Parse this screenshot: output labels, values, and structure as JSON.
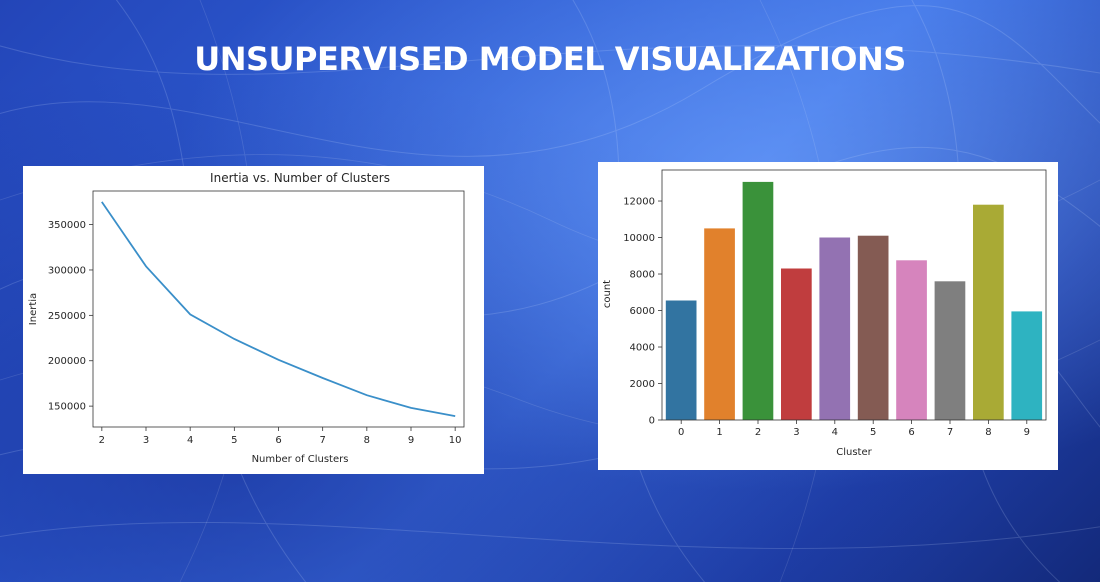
{
  "slide": {
    "title": "UNSUPERVISED MODEL VISUALIZATIONS"
  },
  "chart_data": [
    {
      "type": "line",
      "title": "Inertia vs. Number of Clusters",
      "xlabel": "Number of Clusters",
      "ylabel": "Inertia",
      "x": [
        2,
        3,
        4,
        5,
        6,
        7,
        8,
        9,
        10
      ],
      "series": [
        {
          "values": [
            375000,
            304000,
            251000,
            224000,
            201000,
            181000,
            162000,
            148000,
            139000
          ],
          "color": "#3a8fc9"
        }
      ],
      "xlim": [
        1.8,
        10.2
      ],
      "ylim": [
        127000,
        387000
      ],
      "xticks": [
        "2",
        "3",
        "4",
        "5",
        "6",
        "7",
        "8",
        "9",
        "10"
      ],
      "yticks": [
        150000,
        200000,
        250000,
        300000,
        350000
      ],
      "ytick_labels": [
        "150000",
        "200000",
        "250000",
        "300000",
        "350000"
      ],
      "grid": false
    },
    {
      "type": "bar",
      "title": "",
      "xlabel": "Cluster",
      "ylabel": "count",
      "categories": [
        "0",
        "1",
        "2",
        "3",
        "4",
        "5",
        "6",
        "7",
        "8",
        "9"
      ],
      "values": [
        6550,
        10500,
        13050,
        8300,
        10000,
        10100,
        8750,
        7600,
        11800,
        5950
      ],
      "colors": [
        "#3274a1",
        "#e1812c",
        "#3a923a",
        "#c03d3e",
        "#9372b2",
        "#845b53",
        "#d684bd",
        "#7f7f7f",
        "#a9aa35",
        "#2eb3c1"
      ],
      "ylim": [
        0,
        13700
      ],
      "yticks": [
        0,
        2000,
        4000,
        6000,
        8000,
        10000,
        12000
      ],
      "ytick_labels": [
        "0",
        "2000",
        "4000",
        "6000",
        "8000",
        "10000",
        "12000"
      ],
      "grid": false
    }
  ]
}
